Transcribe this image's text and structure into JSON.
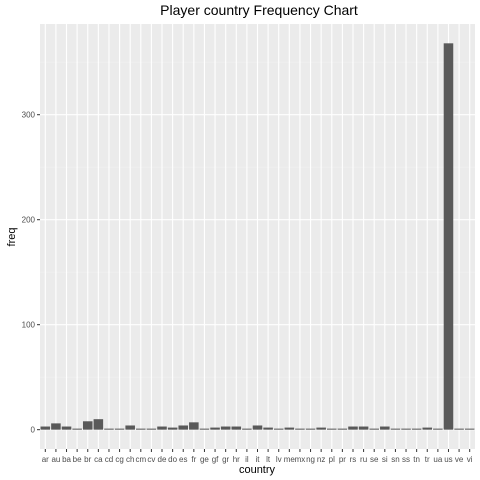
{
  "chart_data": {
    "type": "bar",
    "title": "Player country Frequency Chart",
    "xlabel": "country",
    "ylabel": "freq",
    "categories": [
      "ar",
      "au",
      "ba",
      "be",
      "br",
      "ca",
      "cd",
      "cg",
      "ch",
      "cm",
      "cv",
      "de",
      "do",
      "es",
      "fr",
      "ge",
      "gf",
      "gr",
      "hr",
      "il",
      "it",
      "lt",
      "lv",
      "me",
      "mx",
      "ng",
      "nz",
      "pl",
      "pr",
      "rs",
      "ru",
      "se",
      "si",
      "sn",
      "ss",
      "tn",
      "tr",
      "ua",
      "us",
      "ve",
      "vi"
    ],
    "values": [
      3,
      6,
      3,
      1,
      8,
      10,
      1,
      1,
      4,
      1,
      1,
      3,
      2,
      4,
      7,
      1,
      2,
      3,
      3,
      1,
      4,
      2,
      1,
      2,
      1,
      1,
      2,
      1,
      1,
      3,
      3,
      1,
      3,
      1,
      1,
      1,
      2,
      1,
      368,
      1,
      1
    ],
    "ylim": [
      -18.4,
      386.4
    ],
    "yticks": [
      0,
      100,
      200,
      300
    ],
    "ytick_labels": [
      "0",
      "100",
      "200",
      "300"
    ],
    "grid": true,
    "legend": "none",
    "colors": {
      "bar": "#595959",
      "panel": "#ebebeb",
      "grid_major": "#ffffff",
      "grid_minor": "#f2f2f2"
    }
  }
}
